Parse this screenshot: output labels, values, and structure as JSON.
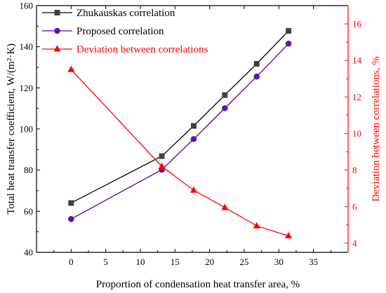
{
  "chart_data": {
    "type": "line",
    "x": [
      0,
      13.1,
      17.7,
      22.2,
      26.8,
      31.4
    ],
    "xlabel": "Proportion of condensation heat transfer area, %",
    "xlim": [
      -5,
      40
    ],
    "xticks": [
      0,
      5,
      10,
      15,
      20,
      25,
      30,
      35
    ],
    "ylabel_left": "Total heat transfer coefficient, W/(m²·K)",
    "ylim_left": [
      40,
      160
    ],
    "yticks_left": [
      40,
      60,
      80,
      100,
      120,
      140,
      160
    ],
    "ylabel_right": "Deviation between correlations, %",
    "ylim_right": [
      3.5,
      17
    ],
    "yticks_right": [
      4,
      6,
      8,
      10,
      12,
      14,
      16
    ],
    "legend_position": "top-left",
    "grid": false,
    "series": [
      {
        "name": "Zhukauskas correlation",
        "axis": "left",
        "marker": "square",
        "color": "#000000",
        "marker_color": "#404040",
        "values": [
          64,
          86.8,
          101.5,
          116.5,
          131.7,
          147.7
        ]
      },
      {
        "name": "Proposed correlation",
        "axis": "left",
        "marker": "circle",
        "color": "#5500aa",
        "marker_color": "#5a18a8",
        "values": [
          56.2,
          80.2,
          95.1,
          110.1,
          125.5,
          141.5
        ]
      },
      {
        "name": "Deviation between correlations",
        "axis": "right",
        "marker": "triangle",
        "color": "#ff0000",
        "marker_color": "#ff0000",
        "values": [
          13.5,
          8.2,
          6.9,
          5.95,
          4.95,
          4.4
        ]
      }
    ]
  }
}
